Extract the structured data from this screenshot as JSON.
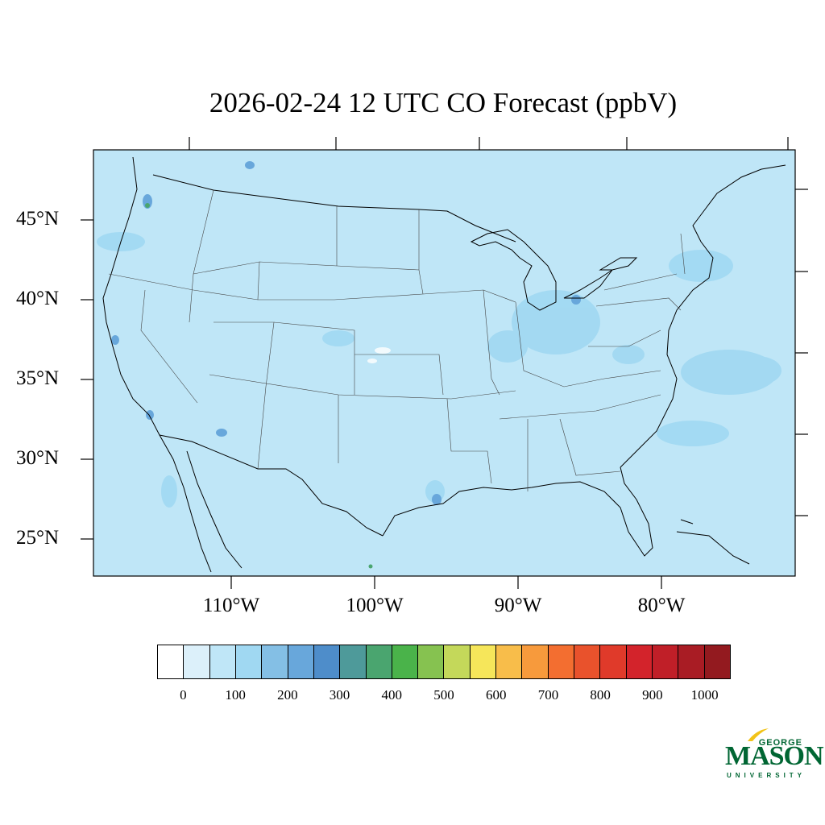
{
  "title": "2026-02-24 12 UTC CO Forecast (ppbV)",
  "lat_labels": [
    "45°N",
    "40°N",
    "35°N",
    "30°N",
    "25°N"
  ],
  "lon_labels": [
    "110°W",
    "100°W",
    "90°W",
    "80°W"
  ],
  "colorbar": {
    "colors": [
      "#ffffff",
      "#dcf0fa",
      "#bfe6f7",
      "#a0d8f2",
      "#84bfe5",
      "#68a7db",
      "#4e8dca",
      "#4e9a9a",
      "#4aa56f",
      "#4ab34a",
      "#86c250",
      "#c4d85a",
      "#f6e65a",
      "#f8bd4a",
      "#f79a3c",
      "#f36e30",
      "#e9522c",
      "#e03a2a",
      "#d3232b",
      "#c01f28",
      "#a91c24",
      "#931a1f"
    ],
    "tick_labels": [
      "0",
      "100",
      "200",
      "300",
      "400",
      "500",
      "600",
      "700",
      "800",
      "900",
      "1000"
    ]
  },
  "map": {
    "background_color": "#bfe6f7",
    "units": "ppbV"
  },
  "logo": {
    "george": "GEORGE",
    "mason": "MASON",
    "university": "UNIVERSITY"
  }
}
